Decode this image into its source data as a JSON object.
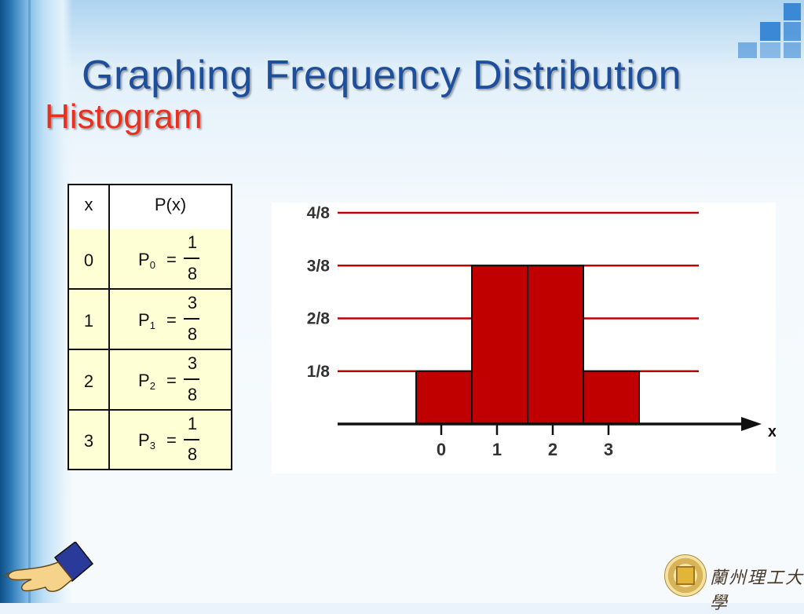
{
  "slide": {
    "title": "Graphing Frequency Distribution",
    "subtitle": "Histogram",
    "logo_text": "蘭州理工大學"
  },
  "table": {
    "headers": [
      "x",
      "P(x)"
    ],
    "rows": [
      {
        "x": "0",
        "p": "P",
        "sub": "0",
        "eq": "=",
        "num": "1",
        "den": "8"
      },
      {
        "x": "1",
        "p": "P",
        "sub": "1",
        "eq": "=",
        "num": "3",
        "den": "8"
      },
      {
        "x": "2",
        "p": "P",
        "sub": "2",
        "eq": "=",
        "num": "3",
        "den": "8"
      },
      {
        "x": "3",
        "p": "P",
        "sub": "3",
        "eq": "=",
        "num": "1",
        "den": "8"
      }
    ]
  },
  "chart_data": {
    "type": "bar",
    "categories": [
      "0",
      "1",
      "2",
      "3"
    ],
    "values": [
      0.125,
      0.375,
      0.375,
      0.125
    ],
    "y_ticks": [
      "1/8",
      "2/8",
      "3/8",
      "4/8"
    ],
    "y_tick_values": [
      0.125,
      0.25,
      0.375,
      0.5
    ],
    "xlabel": "x",
    "ylim": [
      0,
      0.5
    ],
    "grid": true,
    "bar_color": "#c00000",
    "grid_color": "#c00000"
  },
  "colors": {
    "title": "#1e4f9c",
    "subtitle": "#e8301c",
    "table_fill": "#ffffd6"
  },
  "icons": [
    "pointing-hand-icon",
    "university-seal-icon"
  ]
}
